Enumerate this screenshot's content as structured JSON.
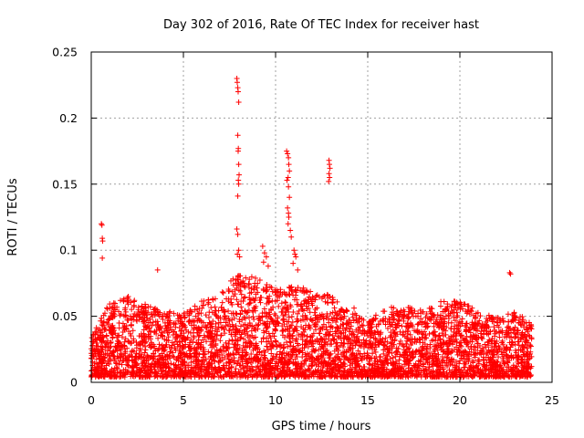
{
  "chart_data": {
    "type": "scatter",
    "title": "Day 302 of 2016, Rate Of TEC Index for receiver hast",
    "xlabel": "GPS time / hours",
    "ylabel": "ROTI / TECUs",
    "xlim": [
      0,
      25
    ],
    "ylim": [
      0,
      0.25
    ],
    "xticks": [
      0,
      5,
      10,
      15,
      20,
      25
    ],
    "xtick_labels": [
      "0",
      "5",
      "10",
      "15",
      "20",
      "25"
    ],
    "yticks": [
      0,
      0.05,
      0.1,
      0.15,
      0.2,
      0.25
    ],
    "ytick_labels": [
      "0",
      "0.05",
      "0.1",
      "0.15",
      "0.2",
      "0.25"
    ],
    "grid": true,
    "marker": "+",
    "series": [
      {
        "name": "ROTI",
        "color": "#ff0000",
        "points": [
          [
            0.55,
            0.12
          ],
          [
            0.58,
            0.119
          ],
          [
            0.6,
            0.109
          ],
          [
            0.62,
            0.107
          ],
          [
            0.6,
            0.094
          ],
          [
            3.6,
            0.085
          ],
          [
            7.9,
            0.23
          ],
          [
            7.92,
            0.227
          ],
          [
            7.95,
            0.223
          ],
          [
            7.97,
            0.22
          ],
          [
            8.0,
            0.212
          ],
          [
            7.95,
            0.187
          ],
          [
            7.98,
            0.177
          ],
          [
            7.97,
            0.175
          ],
          [
            8.0,
            0.165
          ],
          [
            8.02,
            0.157
          ],
          [
            7.98,
            0.153
          ],
          [
            8.0,
            0.15
          ],
          [
            7.95,
            0.141
          ],
          [
            7.9,
            0.116
          ],
          [
            7.95,
            0.112
          ],
          [
            8.0,
            0.1
          ],
          [
            7.93,
            0.097
          ],
          [
            8.05,
            0.095
          ],
          [
            9.3,
            0.103
          ],
          [
            9.4,
            0.098
          ],
          [
            9.5,
            0.095
          ],
          [
            9.35,
            0.091
          ],
          [
            9.6,
            0.088
          ],
          [
            10.6,
            0.175
          ],
          [
            10.65,
            0.173
          ],
          [
            10.7,
            0.17
          ],
          [
            10.72,
            0.165
          ],
          [
            10.75,
            0.16
          ],
          [
            10.68,
            0.155
          ],
          [
            10.62,
            0.153
          ],
          [
            10.7,
            0.148
          ],
          [
            10.75,
            0.14
          ],
          [
            10.65,
            0.132
          ],
          [
            10.7,
            0.128
          ],
          [
            10.72,
            0.125
          ],
          [
            10.68,
            0.12
          ],
          [
            10.8,
            0.115
          ],
          [
            10.85,
            0.11
          ],
          [
            11.0,
            0.1
          ],
          [
            11.05,
            0.097
          ],
          [
            11.1,
            0.095
          ],
          [
            10.95,
            0.09
          ],
          [
            11.2,
            0.085
          ],
          [
            12.9,
            0.168
          ],
          [
            12.92,
            0.165
          ],
          [
            12.95,
            0.162
          ],
          [
            12.9,
            0.158
          ],
          [
            12.93,
            0.155
          ],
          [
            12.88,
            0.152
          ],
          [
            22.7,
            0.083
          ],
          [
            22.75,
            0.082
          ]
        ],
        "bulk_envelope": [
          [
            0.0,
            0.03
          ],
          [
            1.0,
            0.058
          ],
          [
            2.0,
            0.062
          ],
          [
            3.0,
            0.055
          ],
          [
            4.0,
            0.05
          ],
          [
            5.0,
            0.048
          ],
          [
            6.0,
            0.058
          ],
          [
            7.0,
            0.062
          ],
          [
            7.5,
            0.072
          ],
          [
            8.0,
            0.078
          ],
          [
            9.0,
            0.075
          ],
          [
            10.0,
            0.068
          ],
          [
            11.0,
            0.07
          ],
          [
            12.0,
            0.065
          ],
          [
            13.0,
            0.062
          ],
          [
            14.0,
            0.055
          ],
          [
            15.0,
            0.045
          ],
          [
            16.0,
            0.052
          ],
          [
            17.0,
            0.055
          ],
          [
            18.0,
            0.05
          ],
          [
            19.0,
            0.058
          ],
          [
            20.0,
            0.058
          ],
          [
            21.0,
            0.05
          ],
          [
            22.0,
            0.045
          ],
          [
            23.0,
            0.05
          ],
          [
            23.9,
            0.04
          ]
        ]
      }
    ]
  }
}
